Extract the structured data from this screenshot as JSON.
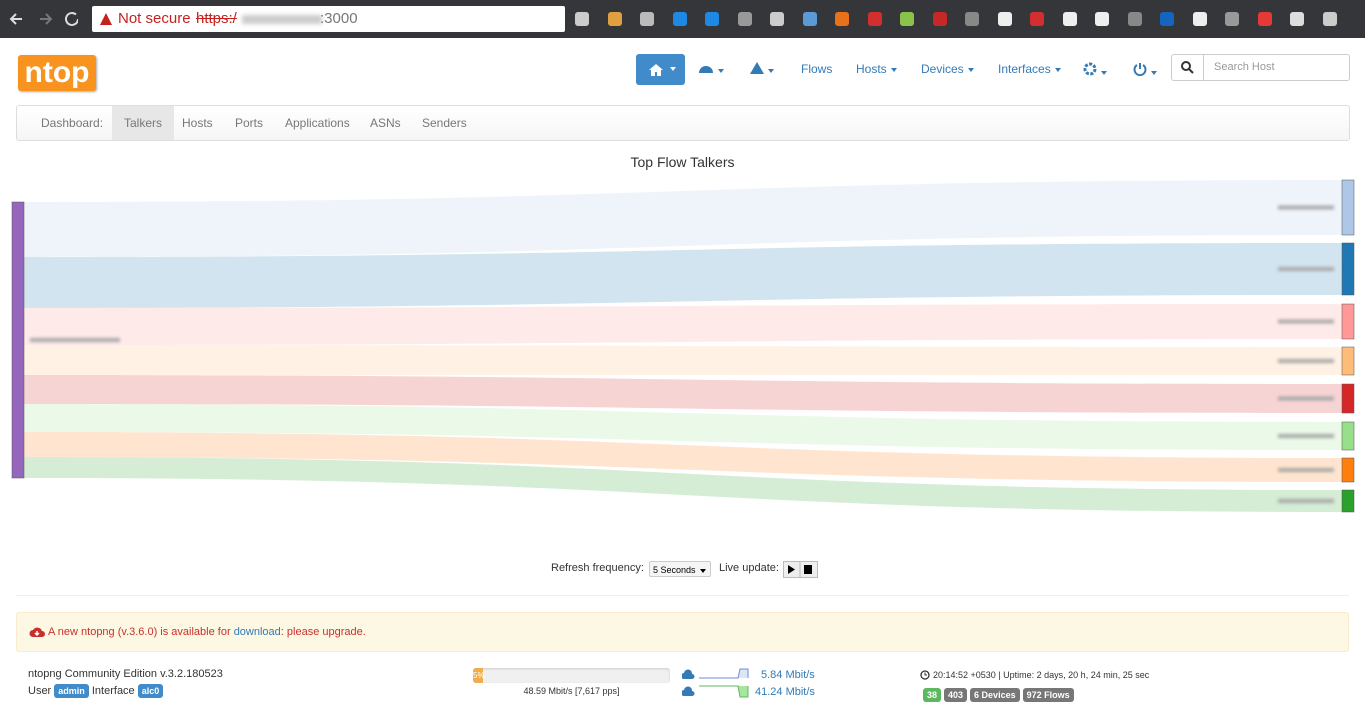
{
  "browser": {
    "security": "Not secure",
    "url_scheme": "https:/",
    "url_port": ":3000"
  },
  "navbar": {
    "logo": "ntop",
    "items": [
      "Flows",
      "Hosts",
      "Devices",
      "Interfaces"
    ],
    "search_placeholder": "Search Host"
  },
  "tabs": {
    "label": "Dashboard:",
    "items": [
      "Talkers",
      "Hosts",
      "Ports",
      "Applications",
      "ASNs",
      "Senders"
    ],
    "active": "Talkers"
  },
  "sankey": {
    "title": "Top Flow Talkers"
  },
  "refresh": {
    "label": "Refresh frequency:",
    "value": "5 Seconds",
    "live_label": "Live update:"
  },
  "alert": {
    "text_before": "A new ntopng (v.3.6.0) is available for",
    "link": "download",
    "text_after": ": please upgrade."
  },
  "footer": {
    "edition": "ntopng Community Edition v.3.2.180523",
    "user_label": "User",
    "user": "admin",
    "interface_label": "Interface",
    "interface": "alc0",
    "load": "5%",
    "throughput": "48.59 Mbit/s [7,617 pps]",
    "upload": "5.84 Mbit/s",
    "download": "41.24 Mbit/s",
    "uptime": "20:14:52 +0530 | Uptime: 2 days, 20 h, 24 min, 25 sec",
    "badges": [
      "38",
      "403",
      "6 Devices",
      "972 Flows"
    ]
  }
}
